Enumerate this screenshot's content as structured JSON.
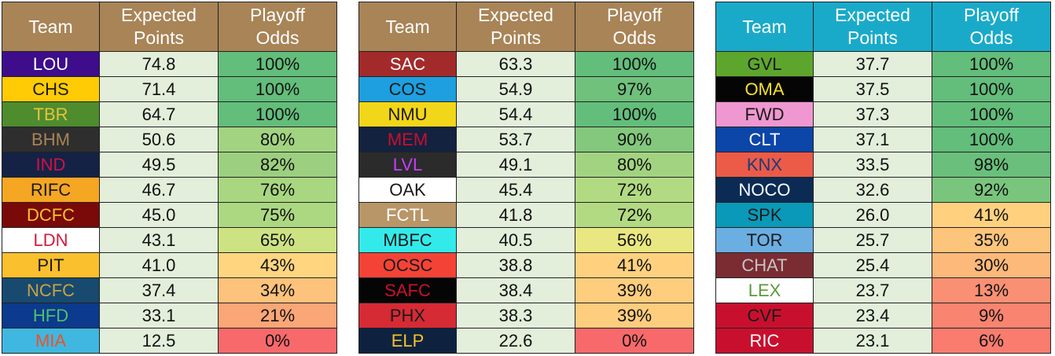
{
  "tables": [
    {
      "header_color": "#a88457",
      "headers": [
        "Team",
        "Expected\nPoints",
        "Playoff\nOdds"
      ],
      "rows": [
        {
          "team": "LOU",
          "bg": "#3d0d8c",
          "fg": "#ffffff",
          "points": "74.8",
          "odds": "100%",
          "odds_bg": "#63bd7b"
        },
        {
          "team": "CHS",
          "bg": "#ffcb05",
          "fg": "#1a1a1a",
          "points": "71.4",
          "odds": "100%",
          "odds_bg": "#63bd7b"
        },
        {
          "team": "TBR",
          "bg": "#4e8c2e",
          "fg": "#e8c23c",
          "points": "64.7",
          "odds": "100%",
          "odds_bg": "#63bd7b"
        },
        {
          "team": "BHM",
          "bg": "#2e2e2e",
          "fg": "#a88457",
          "points": "50.6",
          "odds": "80%",
          "odds_bg": "#a2d381"
        },
        {
          "team": "IND",
          "bg": "#142246",
          "fg": "#d31145",
          "points": "49.5",
          "odds": "82%",
          "odds_bg": "#9ccf7f"
        },
        {
          "team": "RIFC",
          "bg": "#f5a623",
          "fg": "#1a1a1a",
          "points": "46.7",
          "odds": "76%",
          "odds_bg": "#a8d681"
        },
        {
          "team": "DCFC",
          "bg": "#7a0a0a",
          "fg": "#f3c230",
          "points": "45.0",
          "odds": "75%",
          "odds_bg": "#acd882"
        },
        {
          "team": "LDN",
          "bg": "#ffffff",
          "fg": "#d41a3c",
          "points": "43.1",
          "odds": "65%",
          "odds_bg": "#cde383"
        },
        {
          "team": "PIT",
          "bg": "#fbc02d",
          "fg": "#1a1a1a",
          "points": "41.0",
          "odds": "43%",
          "odds_bg": "#ffd580"
        },
        {
          "team": "NCFC",
          "bg": "#174a6e",
          "fg": "#c8a14a",
          "points": "37.4",
          "odds": "34%",
          "odds_bg": "#fdc27b"
        },
        {
          "team": "HFD",
          "bg": "#0c3a8c",
          "fg": "#4fc16b",
          "points": "33.1",
          "odds": "21%",
          "odds_bg": "#fba676"
        },
        {
          "team": "MIA",
          "bg": "#40b7e0",
          "fg": "#e8532b",
          "points": "12.5",
          "odds": "0%",
          "odds_bg": "#f8696b"
        }
      ]
    },
    {
      "header_color": "#a88457",
      "headers": [
        "Team",
        "Expected\nPoints",
        "Playoff\nOdds"
      ],
      "rows": [
        {
          "team": "SAC",
          "bg": "#a32a2a",
          "fg": "#ffffff",
          "points": "63.3",
          "odds": "100%",
          "odds_bg": "#63bd7b"
        },
        {
          "team": "COS",
          "bg": "#1e9fe0",
          "fg": "#1a1a1a",
          "points": "54.9",
          "odds": "97%",
          "odds_bg": "#6fc17c"
        },
        {
          "team": "NMU",
          "bg": "#f2d619",
          "fg": "#1a1a1a",
          "points": "54.4",
          "odds": "100%",
          "odds_bg": "#63bd7b"
        },
        {
          "team": "MEM",
          "bg": "#13223f",
          "fg": "#c8102e",
          "points": "53.7",
          "odds": "90%",
          "odds_bg": "#83c87d"
        },
        {
          "team": "LVL",
          "bg": "#2b2b2b",
          "fg": "#c83dff",
          "points": "49.1",
          "odds": "80%",
          "odds_bg": "#a2d381"
        },
        {
          "team": "OAK",
          "bg": "#ffffff",
          "fg": "#1a1a1a",
          "points": "45.4",
          "odds": "72%",
          "odds_bg": "#b2da82"
        },
        {
          "team": "FCTL",
          "bg": "#b89668",
          "fg": "#ffffff",
          "points": "41.8",
          "odds": "72%",
          "odds_bg": "#b2da82"
        },
        {
          "team": "MBFC",
          "bg": "#33eaea",
          "fg": "#1a1a1a",
          "points": "40.5",
          "odds": "56%",
          "odds_bg": "#e9e782"
        },
        {
          "team": "OCSC",
          "bg": "#f44336",
          "fg": "#1a1a1a",
          "points": "38.8",
          "odds": "41%",
          "odds_bg": "#ffd17f"
        },
        {
          "team": "SAFC",
          "bg": "#050505",
          "fg": "#c8102e",
          "points": "38.4",
          "odds": "39%",
          "odds_bg": "#fecd7e"
        },
        {
          "team": "PHX",
          "bg": "#d62a35",
          "fg": "#1a1a1a",
          "points": "38.3",
          "odds": "39%",
          "odds_bg": "#fecd7e"
        },
        {
          "team": "ELP",
          "bg": "#0e2240",
          "fg": "#f5c229",
          "points": "22.6",
          "odds": "0%",
          "odds_bg": "#f8696b"
        }
      ]
    },
    {
      "header_color": "#1aaac9",
      "headers": [
        "Team",
        "Expected\nPoints",
        "Playoff\nOdds"
      ],
      "rows": [
        {
          "team": "GVL",
          "bg": "#5da62d",
          "fg": "#1a1a1a",
          "points": "37.7",
          "odds": "100%",
          "odds_bg": "#63bd7b"
        },
        {
          "team": "OMA",
          "bg": "#050505",
          "fg": "#f5e12b",
          "points": "37.5",
          "odds": "100%",
          "odds_bg": "#63bd7b"
        },
        {
          "team": "FWD",
          "bg": "#ef97d0",
          "fg": "#1a1a1a",
          "points": "37.3",
          "odds": "100%",
          "odds_bg": "#63bd7b"
        },
        {
          "team": "CLT",
          "bg": "#0b46a8",
          "fg": "#ffffff",
          "points": "37.1",
          "odds": "100%",
          "odds_bg": "#63bd7b"
        },
        {
          "team": "KNX",
          "bg": "#ec5a48",
          "fg": "#1a3c7a",
          "points": "33.5",
          "odds": "98%",
          "odds_bg": "#69bf7b"
        },
        {
          "team": "NOCO",
          "bg": "#0b2b55",
          "fg": "#ffffff",
          "points": "32.6",
          "odds": "92%",
          "odds_bg": "#7ac57d"
        },
        {
          "team": "SPK",
          "bg": "#0a99b8",
          "fg": "#1a1a1a",
          "points": "26.0",
          "odds": "41%",
          "odds_bg": "#ffd17f"
        },
        {
          "team": "TOR",
          "bg": "#6aaee2",
          "fg": "#1a1a1a",
          "points": "25.7",
          "odds": "35%",
          "odds_bg": "#fdc47c"
        },
        {
          "team": "CHAT",
          "bg": "#7b2c33",
          "fg": "#c4c4c4",
          "points": "25.4",
          "odds": "30%",
          "odds_bg": "#fcb97a"
        },
        {
          "team": "LEX",
          "bg": "#ffffff",
          "fg": "#5a9a3a",
          "points": "23.7",
          "odds": "13%",
          "odds_bg": "#fa9073"
        },
        {
          "team": "CVF",
          "bg": "#c8102e",
          "fg": "#1a1a1a",
          "points": "23.4",
          "odds": "9%",
          "odds_bg": "#f98470"
        },
        {
          "team": "RIC",
          "bg": "#c8102e",
          "fg": "#ffffff",
          "points": "23.1",
          "odds": "6%",
          "odds_bg": "#f97c6f"
        }
      ]
    }
  ]
}
